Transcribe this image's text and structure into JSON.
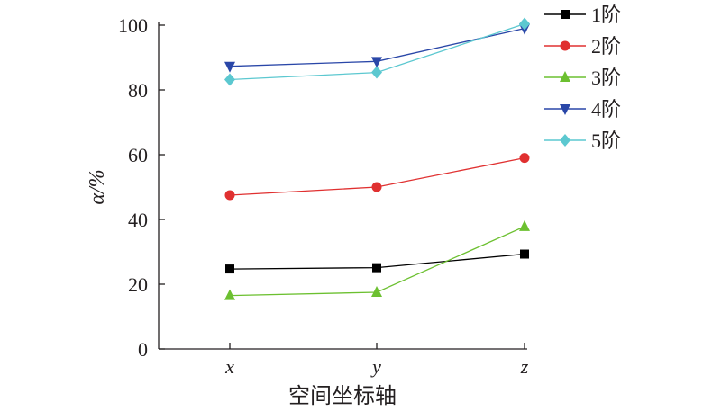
{
  "chart_data": {
    "type": "line",
    "x": [
      "x",
      "y",
      "z"
    ],
    "xlabel": "空间坐标轴",
    "ylabel": "α/%",
    "ylim": [
      0,
      100
    ],
    "yticks": [
      0,
      20,
      40,
      60,
      80,
      100
    ],
    "grid": false,
    "legend_position": "top-right",
    "series": [
      {
        "name": "1阶",
        "values": [
          24.7,
          25.1,
          29.3
        ],
        "color": "#000000",
        "marker": "square"
      },
      {
        "name": "2阶",
        "values": [
          47.5,
          50.0,
          59.0
        ],
        "color": "#e03030",
        "marker": "circle"
      },
      {
        "name": "3阶",
        "values": [
          16.5,
          17.5,
          37.8
        ],
        "color": "#6cc030",
        "marker": "triangle-up"
      },
      {
        "name": "4阶",
        "values": [
          87.3,
          88.8,
          99.0
        ],
        "color": "#2a47a8",
        "marker": "triangle-down"
      },
      {
        "name": "5阶",
        "values": [
          83.2,
          85.4,
          100.4
        ],
        "color": "#5cc8d0",
        "marker": "diamond"
      }
    ]
  }
}
